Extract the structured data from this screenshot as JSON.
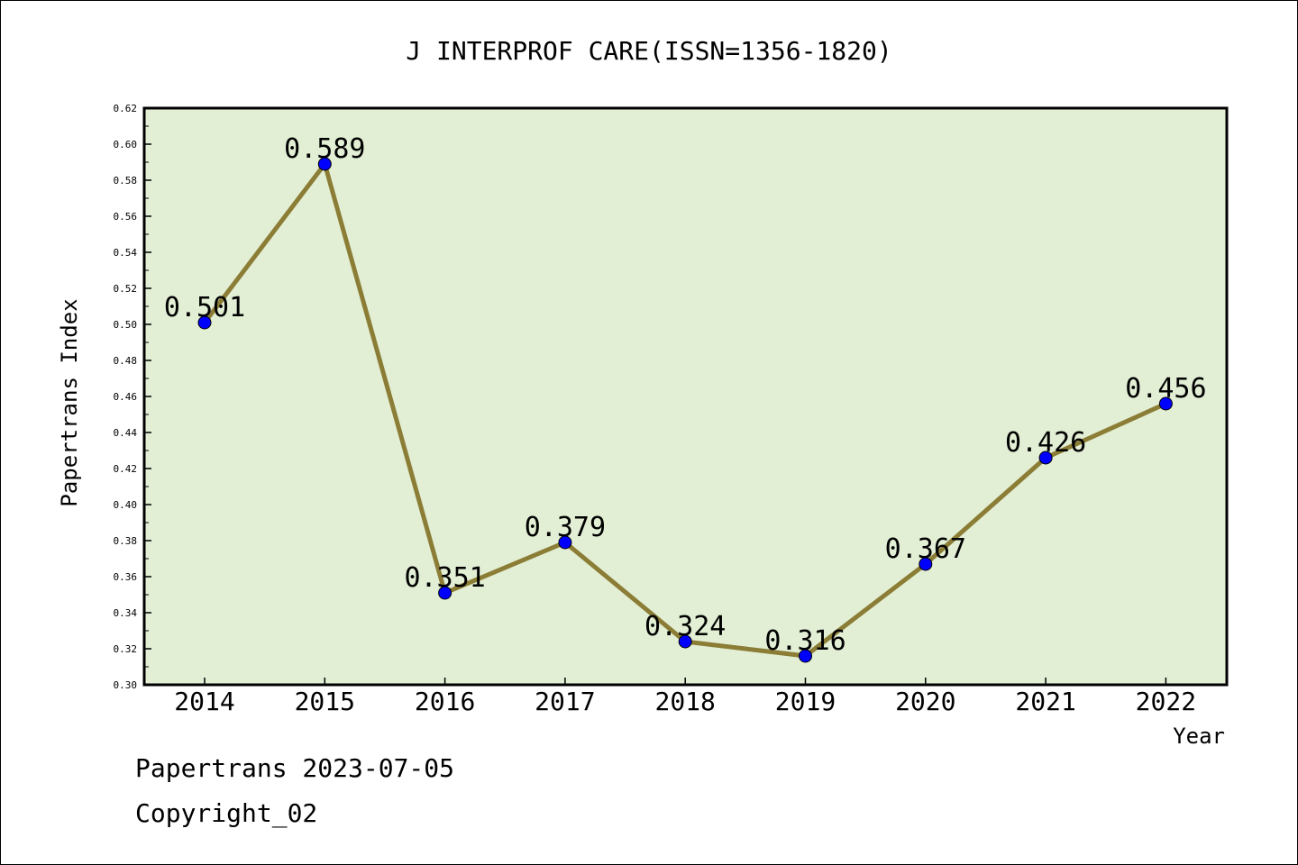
{
  "chart_data": {
    "type": "line",
    "title": "J INTERPROF CARE(ISSN=1356-1820)",
    "xlabel": "Year",
    "ylabel": "Papertrans Index",
    "categories": [
      "2014",
      "2015",
      "2016",
      "2017",
      "2018",
      "2019",
      "2020",
      "2021",
      "2022"
    ],
    "values": [
      0.501,
      0.589,
      0.351,
      0.379,
      0.324,
      0.316,
      0.367,
      0.426,
      0.456
    ],
    "data_labels": [
      "0.501",
      "0.589",
      "0.351",
      "0.379",
      "0.324",
      "0.316",
      "0.367",
      "0.426",
      "0.456"
    ],
    "ylim": [
      0.3,
      0.62
    ],
    "yticks": [
      "0.30",
      "0.32",
      "0.34",
      "0.36",
      "0.38",
      "0.40",
      "0.42",
      "0.44",
      "0.46",
      "0.48",
      "0.50",
      "0.52",
      "0.54",
      "0.56",
      "0.58",
      "0.60",
      "0.62"
    ],
    "grid": false,
    "legend": "none",
    "colors": {
      "plot_background": "#e2efd5",
      "line": "#8b7d35",
      "marker": "#0000ff"
    }
  },
  "footer": {
    "source": "Papertrans 2023-07-05",
    "copyright": "Copyright_02"
  }
}
